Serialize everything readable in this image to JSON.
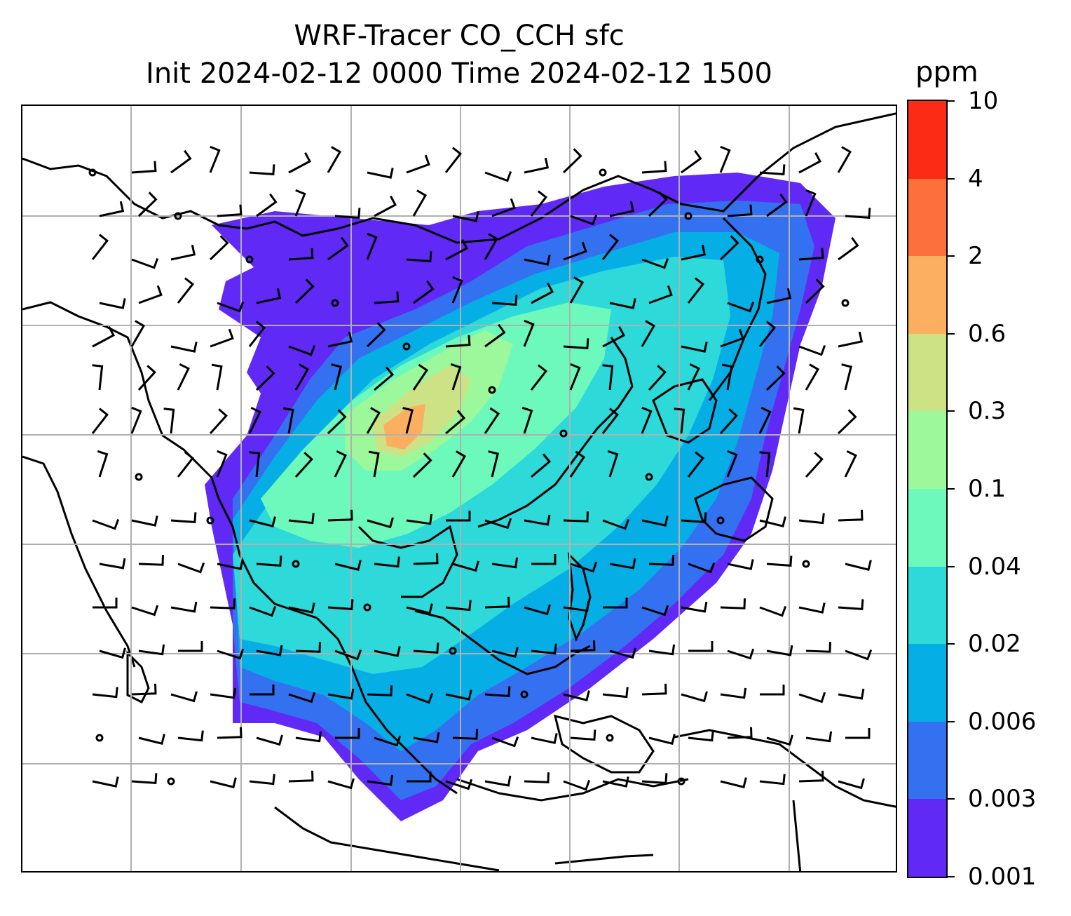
{
  "title": {
    "line1": "WRF-Tracer CO_CCH sfc",
    "line2": "Init 2024-02-12 0000 Time 2024-02-12 1500"
  },
  "colorbar": {
    "unit": "ppm",
    "levels": [
      "0.001",
      "0.003",
      "0.006",
      "0.02",
      "0.04",
      "0.1",
      "0.3",
      "0.6",
      "2",
      "4",
      "10"
    ],
    "colors": [
      "#6129f6",
      "#3471f0",
      "#06aee6",
      "#2ed9d9",
      "#6cf9bb",
      "#9cf89a",
      "#cde284",
      "#fdaf61",
      "#fd703b",
      "#fb2b16"
    ]
  },
  "map": {
    "grid": true,
    "gridline_color": "#b0b0b0",
    "coastline_color": "#000000",
    "wind_barbs": true
  }
}
